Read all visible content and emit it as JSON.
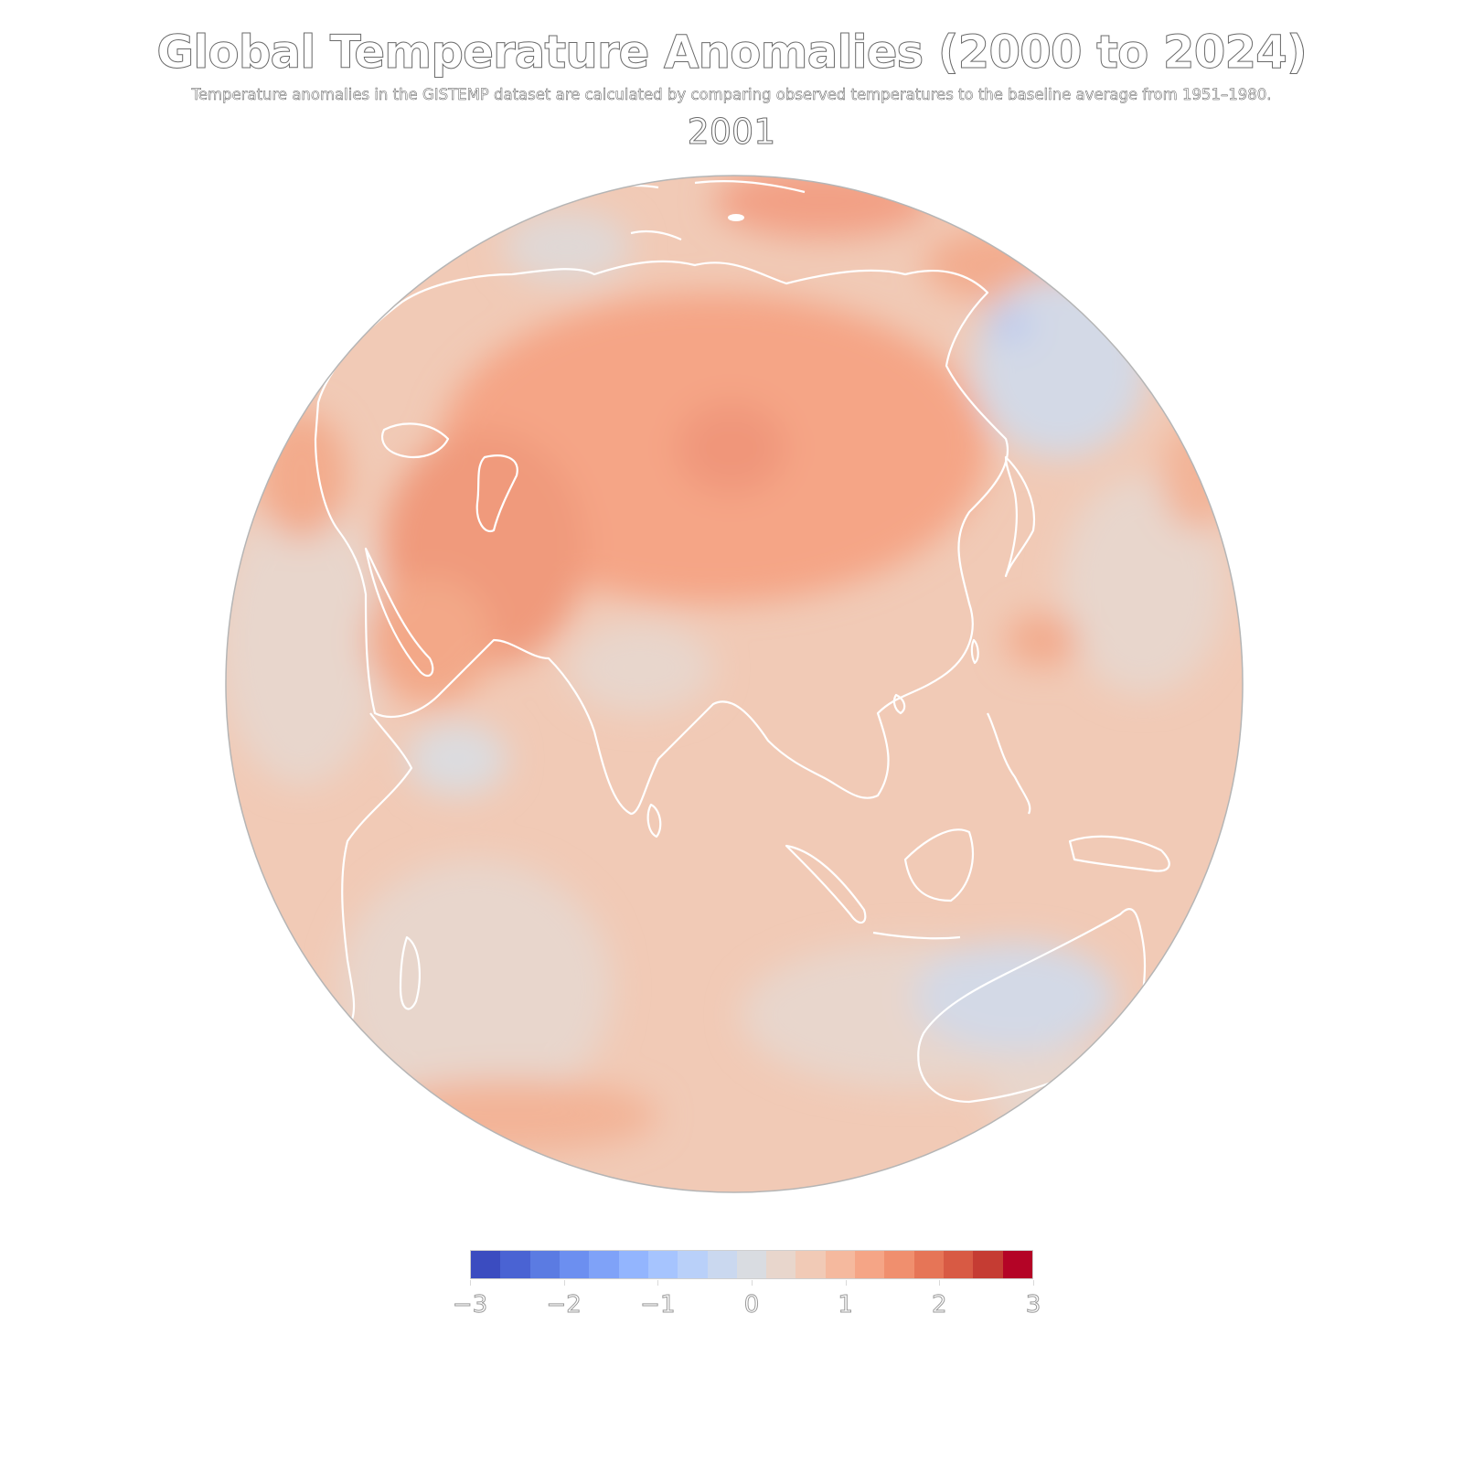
{
  "title": "Global Temperature Anomalies (2000 to 2024)",
  "subtitle": "Temperature anomalies in the GISTEMP dataset are calculated by comparing observed temperatures to the baseline average from 1951–1980.",
  "frame_label": "2001",
  "colorbar": {
    "min": -3,
    "max": 3,
    "tick_labels": [
      "−3",
      "−2",
      "−1",
      "0",
      "1",
      "2",
      "3"
    ],
    "tick_values": [
      -3,
      -2,
      -1,
      0,
      1,
      2,
      3
    ],
    "colors": [
      "#3b4cc0",
      "#4a63d3",
      "#5b7be2",
      "#6c8ff0",
      "#7fa2f8",
      "#93b5fe",
      "#a6c4fe",
      "#b9d0f9",
      "#cad8ef",
      "#d9dce1",
      "#e8d6cc",
      "#f1cab6",
      "#f5b99e",
      "#f5a586",
      "#f08f6e",
      "#e67557",
      "#d85a44",
      "#c53c33",
      "#b40426"
    ]
  },
  "map": {
    "projection": "orthographic",
    "center_label": "Asia / Indian Ocean hemisphere",
    "regions": [
      {
        "name": "western-siberia-warm",
        "anomaly": 1.9
      },
      {
        "name": "central-asia-warm",
        "anomaly": 2.0
      },
      {
        "name": "arctic-ocean-warm",
        "anomaly": 1.2
      },
      {
        "name": "east-siberia-warm",
        "anomaly": 1.7
      },
      {
        "name": "china",
        "anomaly": 0.8
      },
      {
        "name": "indian-ocean",
        "anomaly": 0.6
      },
      {
        "name": "okhotsk-sea-cool",
        "anomaly": -0.3
      },
      {
        "name": "australia-cool",
        "anomaly": -0.3
      },
      {
        "name": "arabian-sea-neutral",
        "anomaly": 0.0
      },
      {
        "name": "southern-ocean-warm",
        "anomaly": 1.1
      }
    ]
  }
}
